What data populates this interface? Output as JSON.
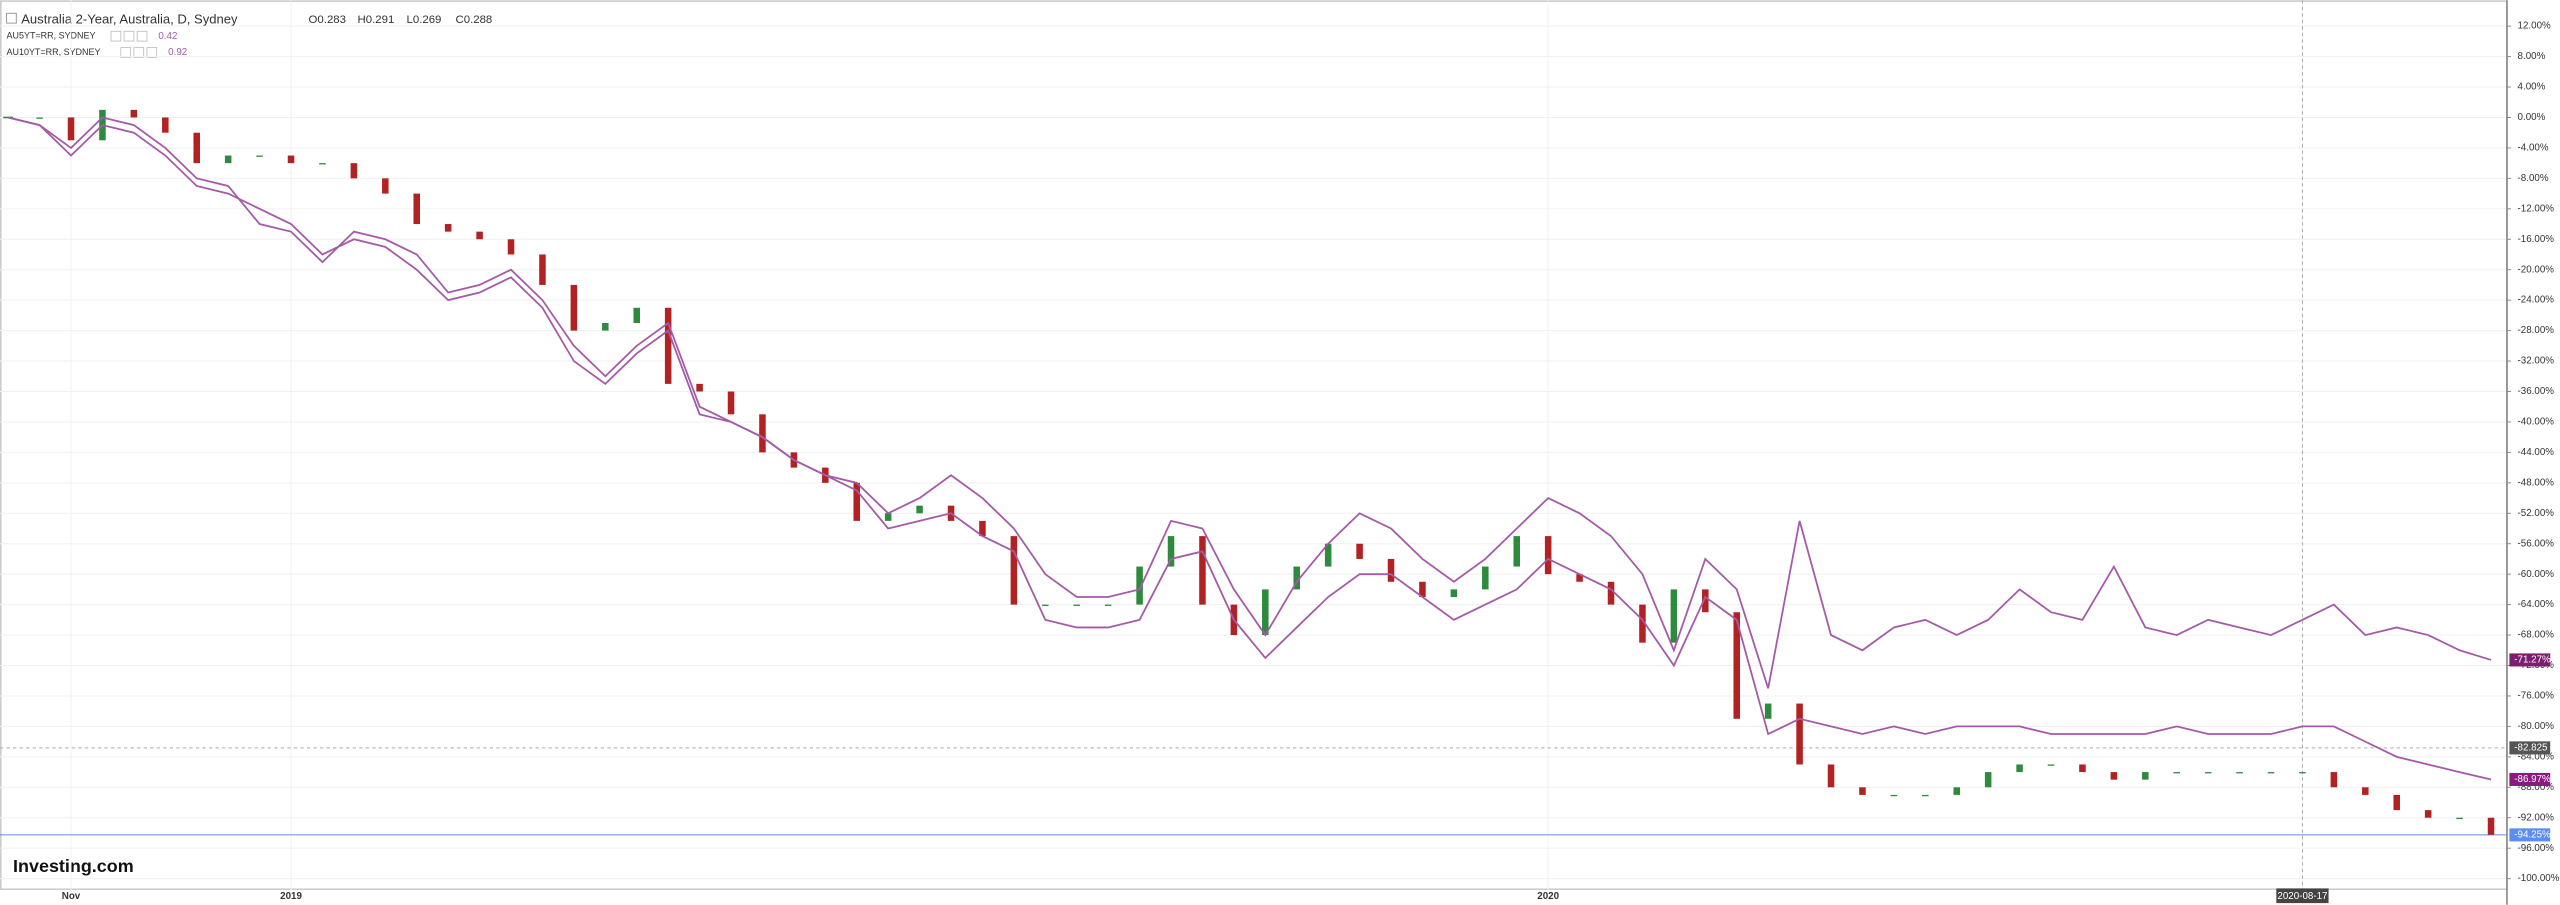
{
  "chart_data": {
    "type": "line",
    "title": "Australia 2-Year, Australia, D, Sydney",
    "ohlc": [
      "O0.283",
      "H0.291",
      "L0.269",
      "C0.288"
    ],
    "logo": "Investing.com",
    "categories": [
      null,
      null,
      "Nov",
      null,
      null,
      null,
      null,
      null,
      null,
      "2019",
      null,
      null,
      null,
      null,
      null,
      null,
      null,
      null,
      null,
      null,
      null,
      null,
      null,
      null,
      null,
      null,
      null,
      null,
      null,
      null,
      null,
      null,
      null,
      null,
      null,
      null,
      null,
      null,
      null,
      null,
      null,
      null,
      null,
      null,
      null,
      null,
      null,
      null,
      null,
      "2020",
      null,
      null,
      null,
      null,
      null,
      null,
      null,
      null,
      null,
      null,
      null,
      null,
      null,
      null,
      null,
      null,
      null,
      null,
      null,
      null,
      null,
      null,
      null,
      "2020-08-17",
      null,
      null,
      null,
      null,
      null,
      null
    ],
    "series": [
      {
        "name": "Australia 2-Year",
        "style": "candles",
        "up_color": "#2e8b3e",
        "down_color": "#b22222",
        "color": "#5b8def",
        "last_label": "-94.25%",
        "values": [
          0,
          0,
          -3,
          1,
          0,
          -2,
          -6,
          -5,
          -5,
          -6,
          -6,
          -8,
          -10,
          -14,
          -15,
          -16,
          -18,
          -22,
          -28,
          -27,
          -25,
          -35,
          -36,
          -39,
          -44,
          -46,
          -48,
          -53,
          -52,
          -51,
          -53,
          -55,
          -64,
          -64,
          -64,
          -64,
          -59,
          -55,
          -64,
          -68,
          -62,
          -59,
          -56,
          -58,
          -61,
          -63,
          -62,
          -59,
          -55,
          -60,
          -61,
          -64,
          -69,
          -62,
          -65,
          -79,
          -77,
          -85,
          -88,
          -89,
          -89,
          -89,
          -88,
          -86,
          -85,
          -85,
          -86,
          -87,
          -86,
          -86,
          -86,
          -86,
          -86,
          -86,
          -88,
          -89,
          -91,
          -92,
          -92,
          -94.25
        ]
      },
      {
        "name": "AU5YT=RR, SYDNEY",
        "price": "0.42",
        "style": "line",
        "color": "#a55aa8",
        "tag_color": "#8b1a7e",
        "last_label": "-86.97%",
        "values": [
          0,
          -1,
          -5,
          -1,
          -2,
          -5,
          -9,
          -10,
          -12,
          -14,
          -18,
          -16,
          -17,
          -20,
          -24,
          -23,
          -21,
          -25,
          -32,
          -35,
          -31,
          -28,
          -39,
          -40,
          -42,
          -45,
          -47,
          -49,
          -54,
          -53,
          -52,
          -55,
          -57,
          -66,
          -67,
          -67,
          -66,
          -58,
          -57,
          -66,
          -71,
          -67,
          -63,
          -60,
          -60,
          -63,
          -66,
          -64,
          -62,
          -58,
          -60,
          -62,
          -66,
          -72,
          -63,
          -66,
          -81,
          -79,
          -80,
          -81,
          -80,
          -81,
          -80,
          -80,
          -80,
          -81,
          -81,
          -81,
          -81,
          -80,
          -81,
          -81,
          -81,
          -80,
          -80,
          -82,
          -84,
          -85,
          -86,
          -86.97
        ]
      },
      {
        "name": "AU10YT=RR, SYDNEY",
        "price": "0.92",
        "style": "line",
        "color": "#a55aa8",
        "tag_color": "#7b1e6f",
        "last_label": "-71.27%",
        "values": [
          0,
          -1,
          -4,
          0,
          -1,
          -4,
          -8,
          -9,
          -14,
          -15,
          -19,
          -15,
          -16,
          -18,
          -23,
          -22,
          -20,
          -24,
          -30,
          -34,
          -30,
          -27,
          -38,
          -40,
          -42,
          -45,
          -47,
          -48,
          -52,
          -50,
          -47,
          -50,
          -54,
          -60,
          -63,
          -63,
          -62,
          -53,
          -54,
          -62,
          -68,
          -61,
          -56,
          -52,
          -54,
          -58,
          -61,
          -58,
          -54,
          -50,
          -52,
          -55,
          -60,
          -70,
          -58,
          -62,
          -75,
          -53,
          -68,
          -70,
          -67,
          -66,
          -68,
          -66,
          -62,
          -65,
          -66,
          -59,
          -67,
          -68,
          -66,
          -67,
          -68,
          -66,
          -64,
          -68,
          -67,
          -68,
          -70,
          -71.27
        ]
      }
    ],
    "crosshair": -82.825,
    "ylim": [
      -101.5,
      15.4
    ],
    "yticks": [
      {
        "value": 12,
        "label": "12.00%"
      },
      {
        "value": 8,
        "label": "8.00%"
      },
      {
        "value": 4,
        "label": "4.00%"
      },
      {
        "value": 0,
        "label": "0.00%"
      },
      {
        "value": -4,
        "label": "-4.00%"
      },
      {
        "value": -8,
        "label": "-8.00%"
      },
      {
        "value": -12,
        "label": "-12.00%"
      },
      {
        "value": -16,
        "label": "-16.00%"
      },
      {
        "value": -20,
        "label": "-20.00%"
      },
      {
        "value": -24,
        "label": "-24.00%"
      },
      {
        "value": -28,
        "label": "-28.00%"
      },
      {
        "value": -32,
        "label": "-32.00%"
      },
      {
        "value": -36,
        "label": "-36.00%"
      },
      {
        "value": -40,
        "label": "-40.00%"
      },
      {
        "value": -44,
        "label": "-44.00%"
      },
      {
        "value": -48,
        "label": "-48.00%"
      },
      {
        "value": -52,
        "label": "-52.00%"
      },
      {
        "value": -56,
        "label": "-56.00%"
      },
      {
        "value": -60,
        "label": "-60.00%"
      },
      {
        "value": -64,
        "label": "-64.00%"
      },
      {
        "value": -68,
        "label": "-68.00%"
      },
      {
        "value": -72,
        "label": "-72.00%"
      },
      {
        "value": -76,
        "label": "-76.00%"
      },
      {
        "value": -80,
        "label": "-80.00%"
      },
      {
        "value": -84,
        "label": "-84.00%"
      },
      {
        "value": -88,
        "label": "-88.00%"
      },
      {
        "value": -92,
        "label": "-92.00%"
      },
      {
        "value": -96,
        "label": "-96.00%"
      },
      {
        "value": -100,
        "label": "-100.00%"
      }
    ],
    "grid": true
  }
}
